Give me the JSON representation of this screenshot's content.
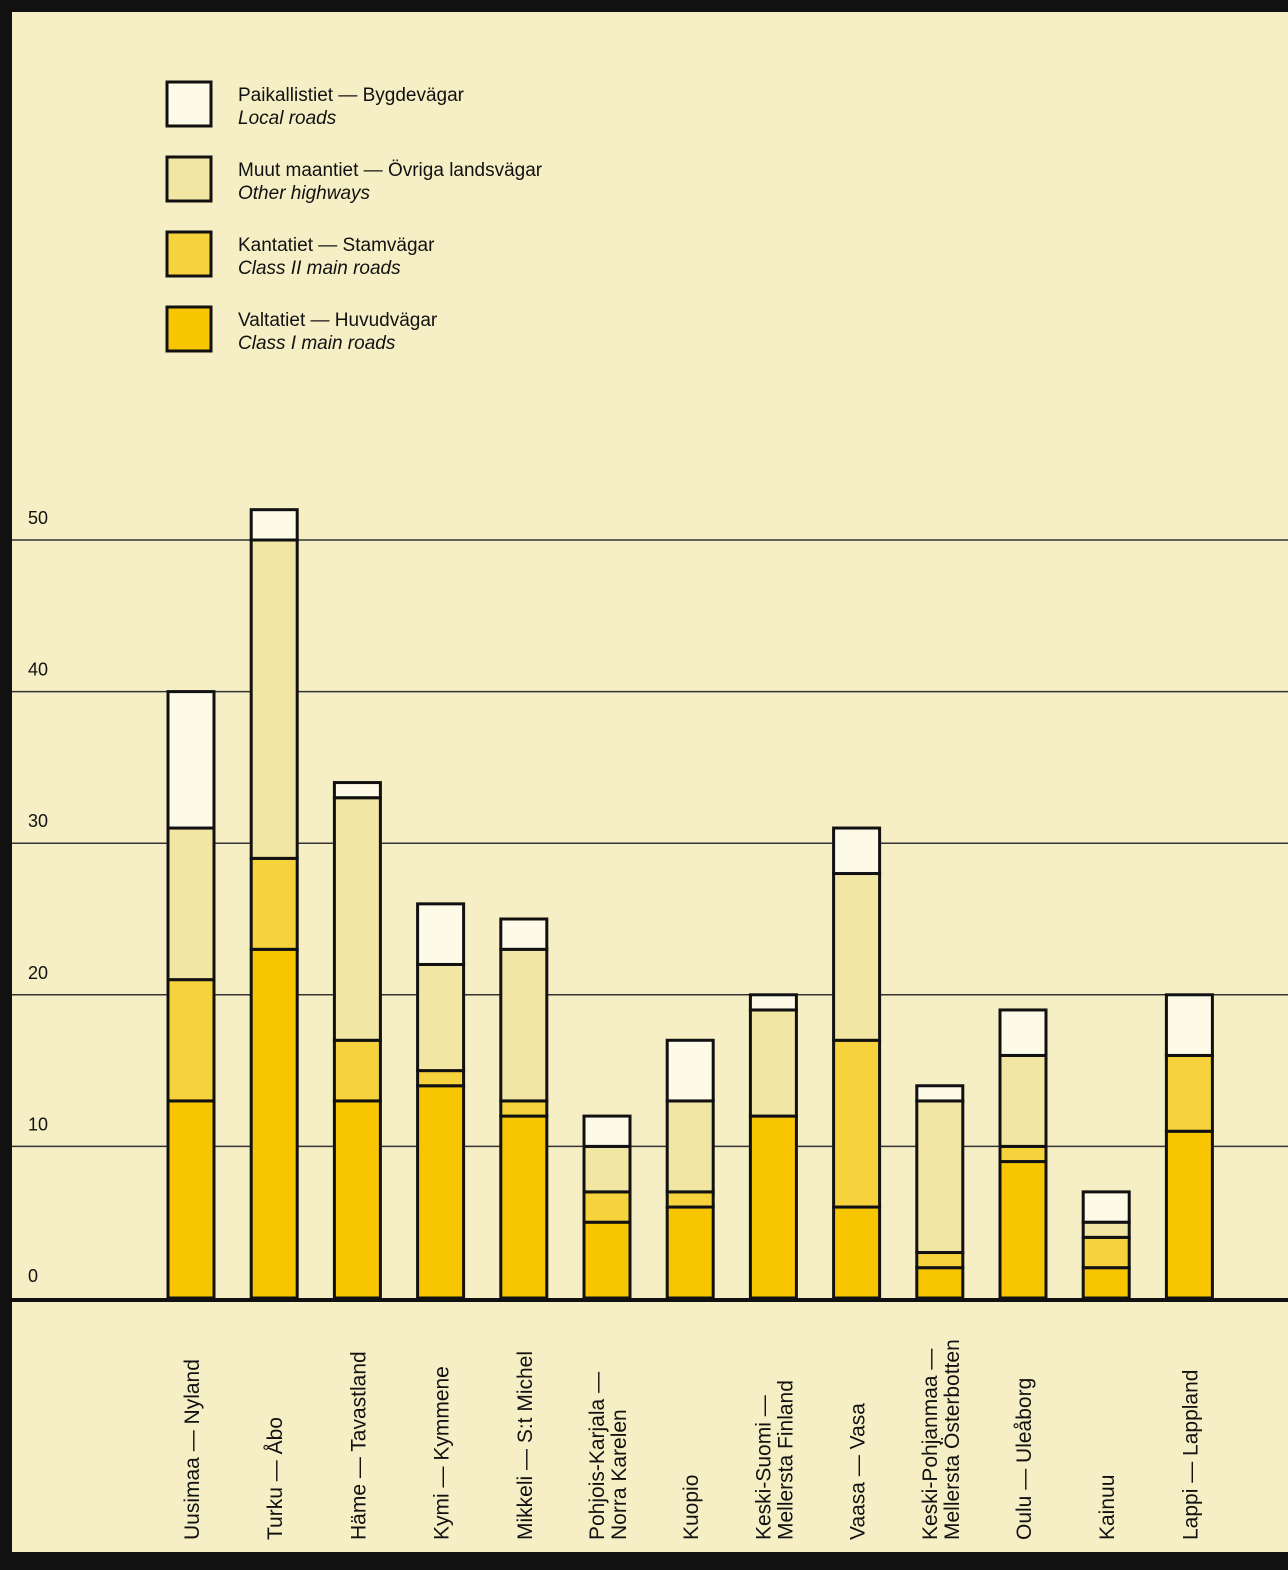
{
  "chart_data": {
    "type": "bar",
    "stacked": true,
    "title": "",
    "xlabel": "",
    "ylabel": "",
    "ylim": [
      0,
      50
    ],
    "yticks": [
      0,
      10,
      20,
      30,
      40,
      50
    ],
    "grid": true,
    "legend_position": "top-left",
    "categories": [
      [
        "Uusimaa — Nyland"
      ],
      [
        "Turku — Åbo"
      ],
      [
        "Häme — Tavastland"
      ],
      [
        "Kymi — Kymmene"
      ],
      [
        "Mikkeli — S:t Michel"
      ],
      [
        "Pohjois-Karjala —",
        "Norra Karelen"
      ],
      [
        "Kuopio"
      ],
      [
        "Keski-Suomi —",
        "Mellersta Finland"
      ],
      [
        "Vaasa — Vasa"
      ],
      [
        "Keski-Pohjanmaa —",
        "Mellersta Österbotten"
      ],
      [
        "Oulu — Uleåborg"
      ],
      [
        "Kainuu"
      ],
      [
        "Lappi — Lappland"
      ]
    ],
    "series": [
      {
        "name": "Valtatiet — Huvudvägar",
        "subtitle": "Class I main roads",
        "color": "#f7c600",
        "values": [
          13,
          23,
          13,
          14,
          12,
          5,
          6,
          12,
          6,
          2,
          9,
          2,
          11
        ]
      },
      {
        "name": "Kantatiet — Stamvägar",
        "subtitle": "Class II main roads",
        "color": "#f6d33c",
        "values": [
          8,
          6,
          4,
          1,
          1,
          2,
          1,
          0,
          11,
          1,
          1,
          2,
          5
        ]
      },
      {
        "name": "Muut maantiet — Övriga landsvägar",
        "subtitle": "Other highways",
        "color": "#f1e6a3",
        "values": [
          10,
          21,
          16,
          7,
          10,
          3,
          6,
          7,
          11,
          10,
          6,
          1,
          0
        ]
      },
      {
        "name": "Paikallistiet — Bygdevägar",
        "subtitle": "Local roads",
        "color": "#fdfae8",
        "values": [
          9,
          2,
          1,
          4,
          2,
          2,
          4,
          1,
          3,
          1,
          3,
          2,
          4
        ]
      }
    ],
    "legend_order": [
      3,
      2,
      1,
      0
    ]
  },
  "colors": {
    "background": "#f6efc5",
    "frame": "#111111",
    "axis_panel": "#f6efc5"
  }
}
